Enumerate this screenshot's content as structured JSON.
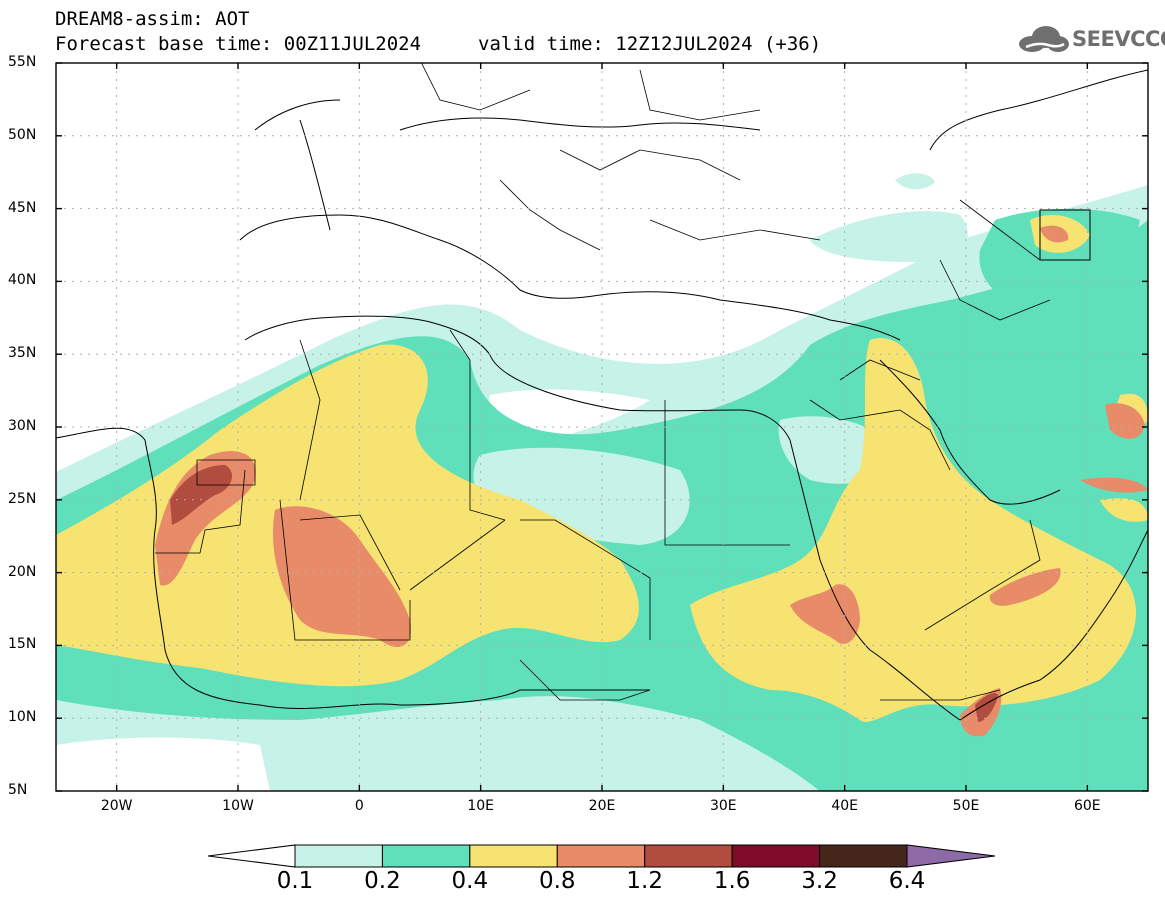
{
  "header": {
    "line1": "DREAM8-assim: AOT",
    "line2": "Forecast base time: 00Z11JUL2024",
    "line3": "valid time: 12Z12JUL2024 (+36)"
  },
  "logo": {
    "text": "SEEVCCC",
    "icon": "cloud-icon",
    "color": "#6f6f6f"
  },
  "map": {
    "lat_range": [
      5,
      55
    ],
    "lon_range": [
      -25,
      65
    ],
    "lat_ticks": [
      "55N",
      "50N",
      "45N",
      "40N",
      "35N",
      "30N",
      "25N",
      "20N",
      "15N",
      "10N",
      "5N"
    ],
    "lon_ticks": [
      "20W",
      "10W",
      "0",
      "10E",
      "20E",
      "30E",
      "40E",
      "50E",
      "60E"
    ],
    "grid": true
  },
  "legend": {
    "labels": [
      "0.1",
      "0.2",
      "0.4",
      "0.8",
      "1.2",
      "1.6",
      "3.2",
      "6.4"
    ],
    "colors": [
      "#ffffff",
      "#c7f2e7",
      "#5fe0bb",
      "#f6e372",
      "#e88b68",
      "#b04d3e",
      "#7e0b29",
      "#44261a",
      "#8e6aa6"
    ]
  }
}
